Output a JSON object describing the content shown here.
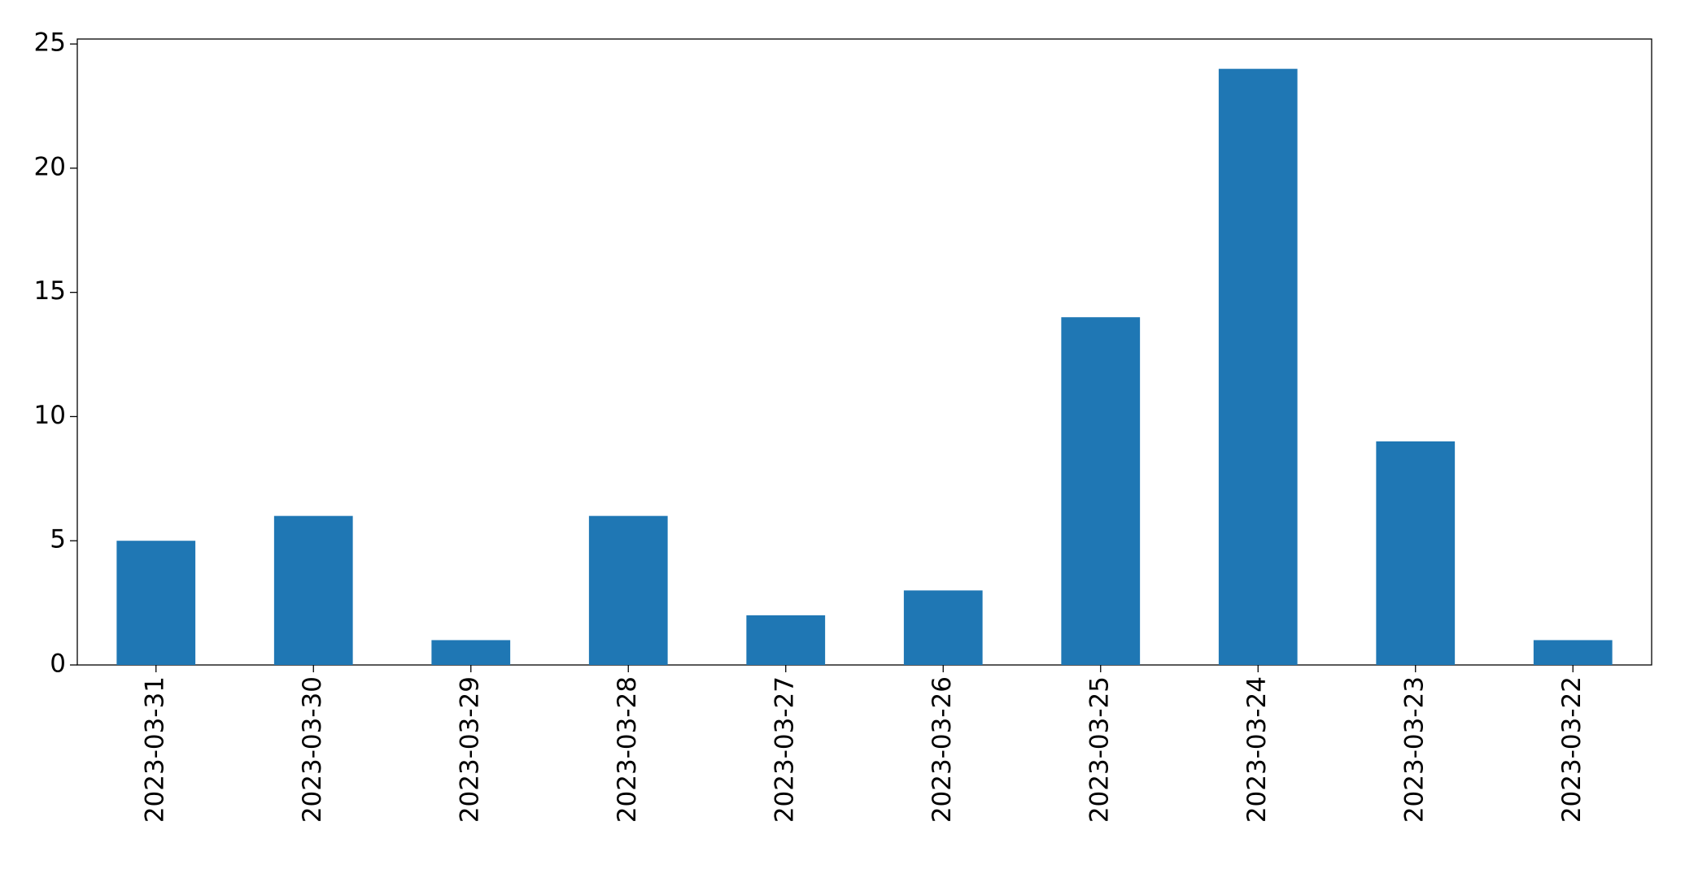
{
  "chart_data": {
    "type": "bar",
    "categories": [
      "2023-03-31",
      "2023-03-30",
      "2023-03-29",
      "2023-03-28",
      "2023-03-27",
      "2023-03-26",
      "2023-03-25",
      "2023-03-24",
      "2023-03-23",
      "2023-03-22"
    ],
    "values": [
      5,
      6,
      1,
      6,
      2,
      3,
      14,
      24,
      9,
      1
    ],
    "color": "#1f77b4",
    "ylim": [
      0,
      25.2
    ],
    "yticks": [
      0,
      5,
      10,
      15,
      20,
      25
    ],
    "grid": false
  }
}
